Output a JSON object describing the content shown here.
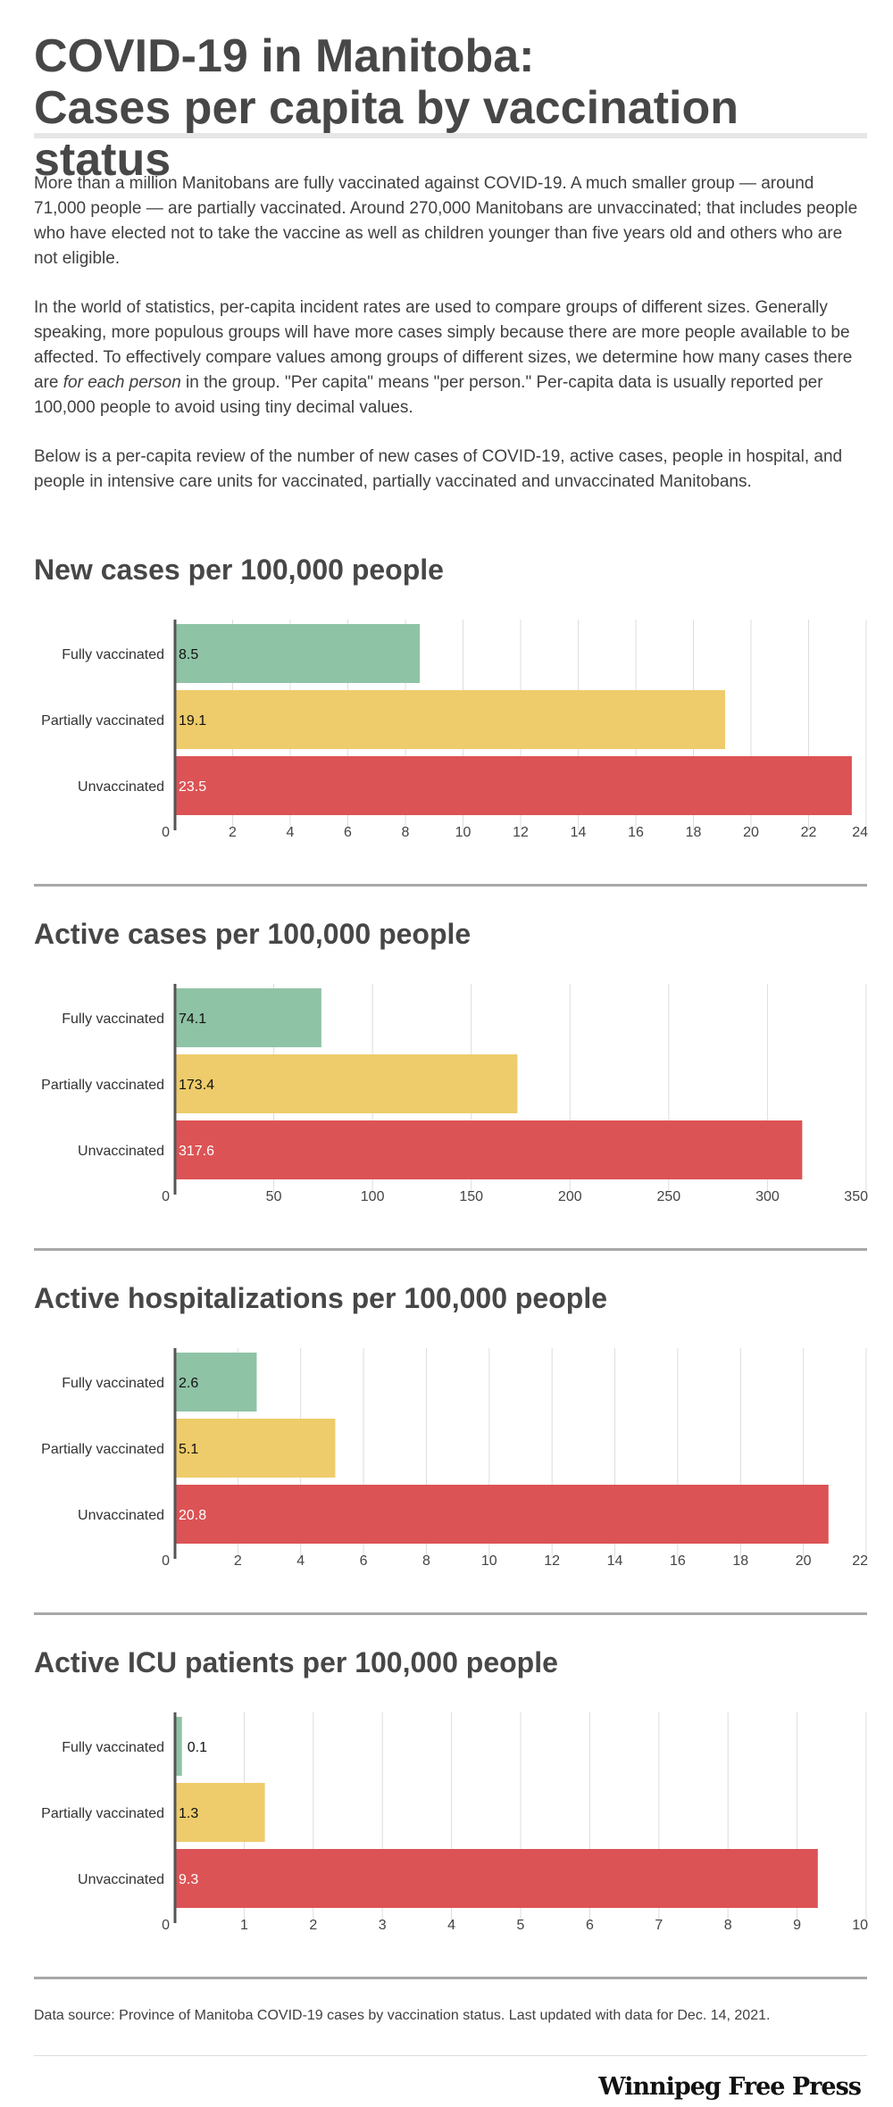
{
  "header": {
    "title_line1": "COVID-19 in Manitoba:",
    "title_line2": "Cases per capita by vaccination status"
  },
  "intro": {
    "p1": "More than a million Manitobans are fully vaccinated against COVID-19.  A much smaller group — around 71,000 people — are partially vaccinated. Around 270,000 Manitobans are unvaccinated; that includes people who have elected not to take the vaccine as well as children younger than five years old and others who are not eligible.",
    "p2_before": "In the world of statistics, per-capita incident rates are used to compare groups of different sizes. Generally speaking, more populous groups will have more cases simply because there are more people available to be affected. To effectively compare values among groups of different sizes, we determine how many cases there are ",
    "p2_em": "for each person",
    "p2_after": " in the group. \"Per capita\" means \"per person.\"  Per-capita data is usually reported per 100,000 people to avoid using tiny decimal values.",
    "p3": "Below is a per-capita review of the number of new cases of COVID-19, active cases, people in hospital, and people in intensive care units for vaccinated, partially vaccinated and unvaccinated Manitobans."
  },
  "colors": {
    "fully": "#8fc3a6",
    "partially": "#eecc6b",
    "unvaccinated": "#dc5355",
    "gridline": "#dddddd",
    "axis": "#555555"
  },
  "chart_data": [
    {
      "type": "bar",
      "orientation": "horizontal",
      "title": "New cases per 100,000 people",
      "categories": [
        "Fully vaccinated",
        "Partially vaccinated",
        "Unvaccinated"
      ],
      "values": [
        8.5,
        19.1,
        23.5
      ],
      "value_labels": [
        "8.5",
        "19.1",
        "23.5"
      ],
      "xlim": [
        0,
        24
      ],
      "ticks": [
        0,
        2,
        4,
        6,
        8,
        10,
        12,
        14,
        16,
        18,
        20,
        22,
        24
      ]
    },
    {
      "type": "bar",
      "orientation": "horizontal",
      "title": "Active cases per 100,000 people",
      "categories": [
        "Fully vaccinated",
        "Partially vaccinated",
        "Unvaccinated"
      ],
      "values": [
        74.1,
        173.4,
        317.6
      ],
      "value_labels": [
        "74.1",
        "173.4",
        "317.6"
      ],
      "xlim": [
        0,
        350
      ],
      "ticks": [
        0,
        50,
        100,
        150,
        200,
        250,
        300,
        350
      ]
    },
    {
      "type": "bar",
      "orientation": "horizontal",
      "title": "Active hospitalizations per 100,000 people",
      "categories": [
        "Fully vaccinated",
        "Partially vaccinated",
        "Unvaccinated"
      ],
      "values": [
        2.6,
        5.1,
        20.8
      ],
      "value_labels": [
        "2.6",
        "5.1",
        "20.8"
      ],
      "xlim": [
        0,
        22
      ],
      "ticks": [
        0,
        2,
        4,
        6,
        8,
        10,
        12,
        14,
        16,
        18,
        20,
        22
      ]
    },
    {
      "type": "bar",
      "orientation": "horizontal",
      "title": "Active ICU patients per 100,000 people",
      "categories": [
        "Fully vaccinated",
        "Partially vaccinated",
        "Unvaccinated"
      ],
      "values": [
        0.1,
        1.3,
        9.3
      ],
      "value_labels": [
        "0.1",
        "1.3",
        "9.3"
      ],
      "xlim": [
        0,
        10
      ],
      "ticks": [
        0,
        1,
        2,
        3,
        4,
        5,
        6,
        7,
        8,
        9,
        10
      ]
    }
  ],
  "footer": {
    "source": "Data source: Province of Manitoba COVID-19 cases by vaccination status.  Last updated with data for Dec. 14, 2021.",
    "brand": "Winnipeg Free Press"
  }
}
